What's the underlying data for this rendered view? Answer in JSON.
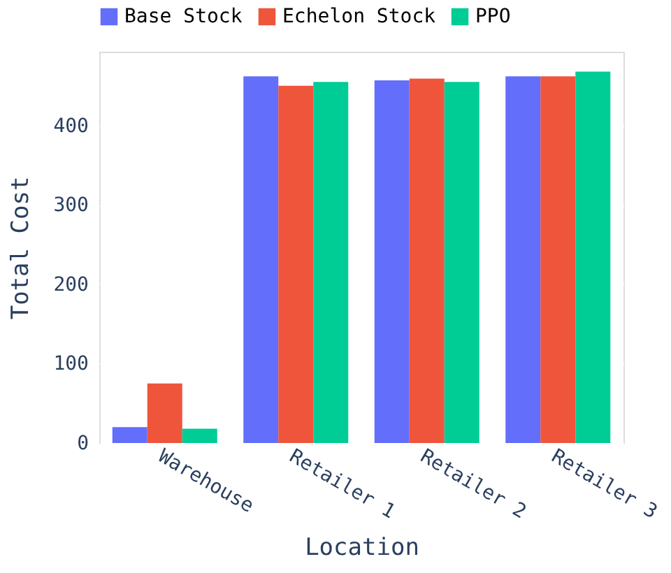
{
  "chart_data": {
    "type": "bar",
    "xlabel": "Location",
    "ylabel": "Total Cost",
    "categories": [
      "Warehouse",
      "Retailer 1",
      "Retailer 2",
      "Retailer 3"
    ],
    "series": [
      {
        "name": "Base Stock",
        "color": "#636efa",
        "values": [
          20,
          462,
          457,
          462
        ]
      },
      {
        "name": "Echelon Stock",
        "color": "#ef553b",
        "values": [
          75,
          450,
          459,
          462
        ]
      },
      {
        "name": "PPO",
        "color": "#00cc96",
        "values": [
          18,
          455,
          455,
          468
        ]
      }
    ],
    "ylim": [
      0,
      493
    ],
    "yticks": [
      0,
      100,
      200,
      300,
      400
    ],
    "grid": "y",
    "legend": "top"
  }
}
